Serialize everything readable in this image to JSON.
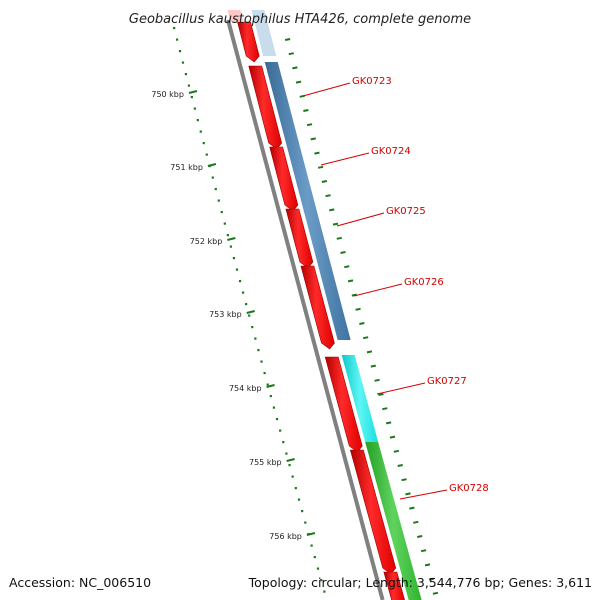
{
  "title": "Geobacillus kaustophilus HTA426, complete genome",
  "accession_label": "Accession: NC_006510",
  "stats_label": "Topology: circular; Length: 3,544,776 bp; Genes: 3,611",
  "ticks": [
    "750 kbp",
    "751 kbp",
    "752 kbp",
    "753 kbp",
    "754 kbp",
    "755 kbp",
    "756 kbp"
  ],
  "genes": [
    {
      "name": "GK0723",
      "cog_color": "#4a7fb0"
    },
    {
      "name": "GK0724",
      "cog_color": "#4a7fb0"
    },
    {
      "name": "GK0725",
      "cog_color": "#4a7fb0"
    },
    {
      "name": "GK0726",
      "cog_color": "#4a7fb0"
    },
    {
      "name": "GK0727",
      "cog_color": "#19e6e6"
    },
    {
      "name": "GK0728",
      "cog_color": "#33bb33"
    }
  ],
  "colors": {
    "cds": "#ff0000",
    "backbone": "#808080",
    "tick": "#1a7a1a",
    "label_line": "#d40000"
  }
}
